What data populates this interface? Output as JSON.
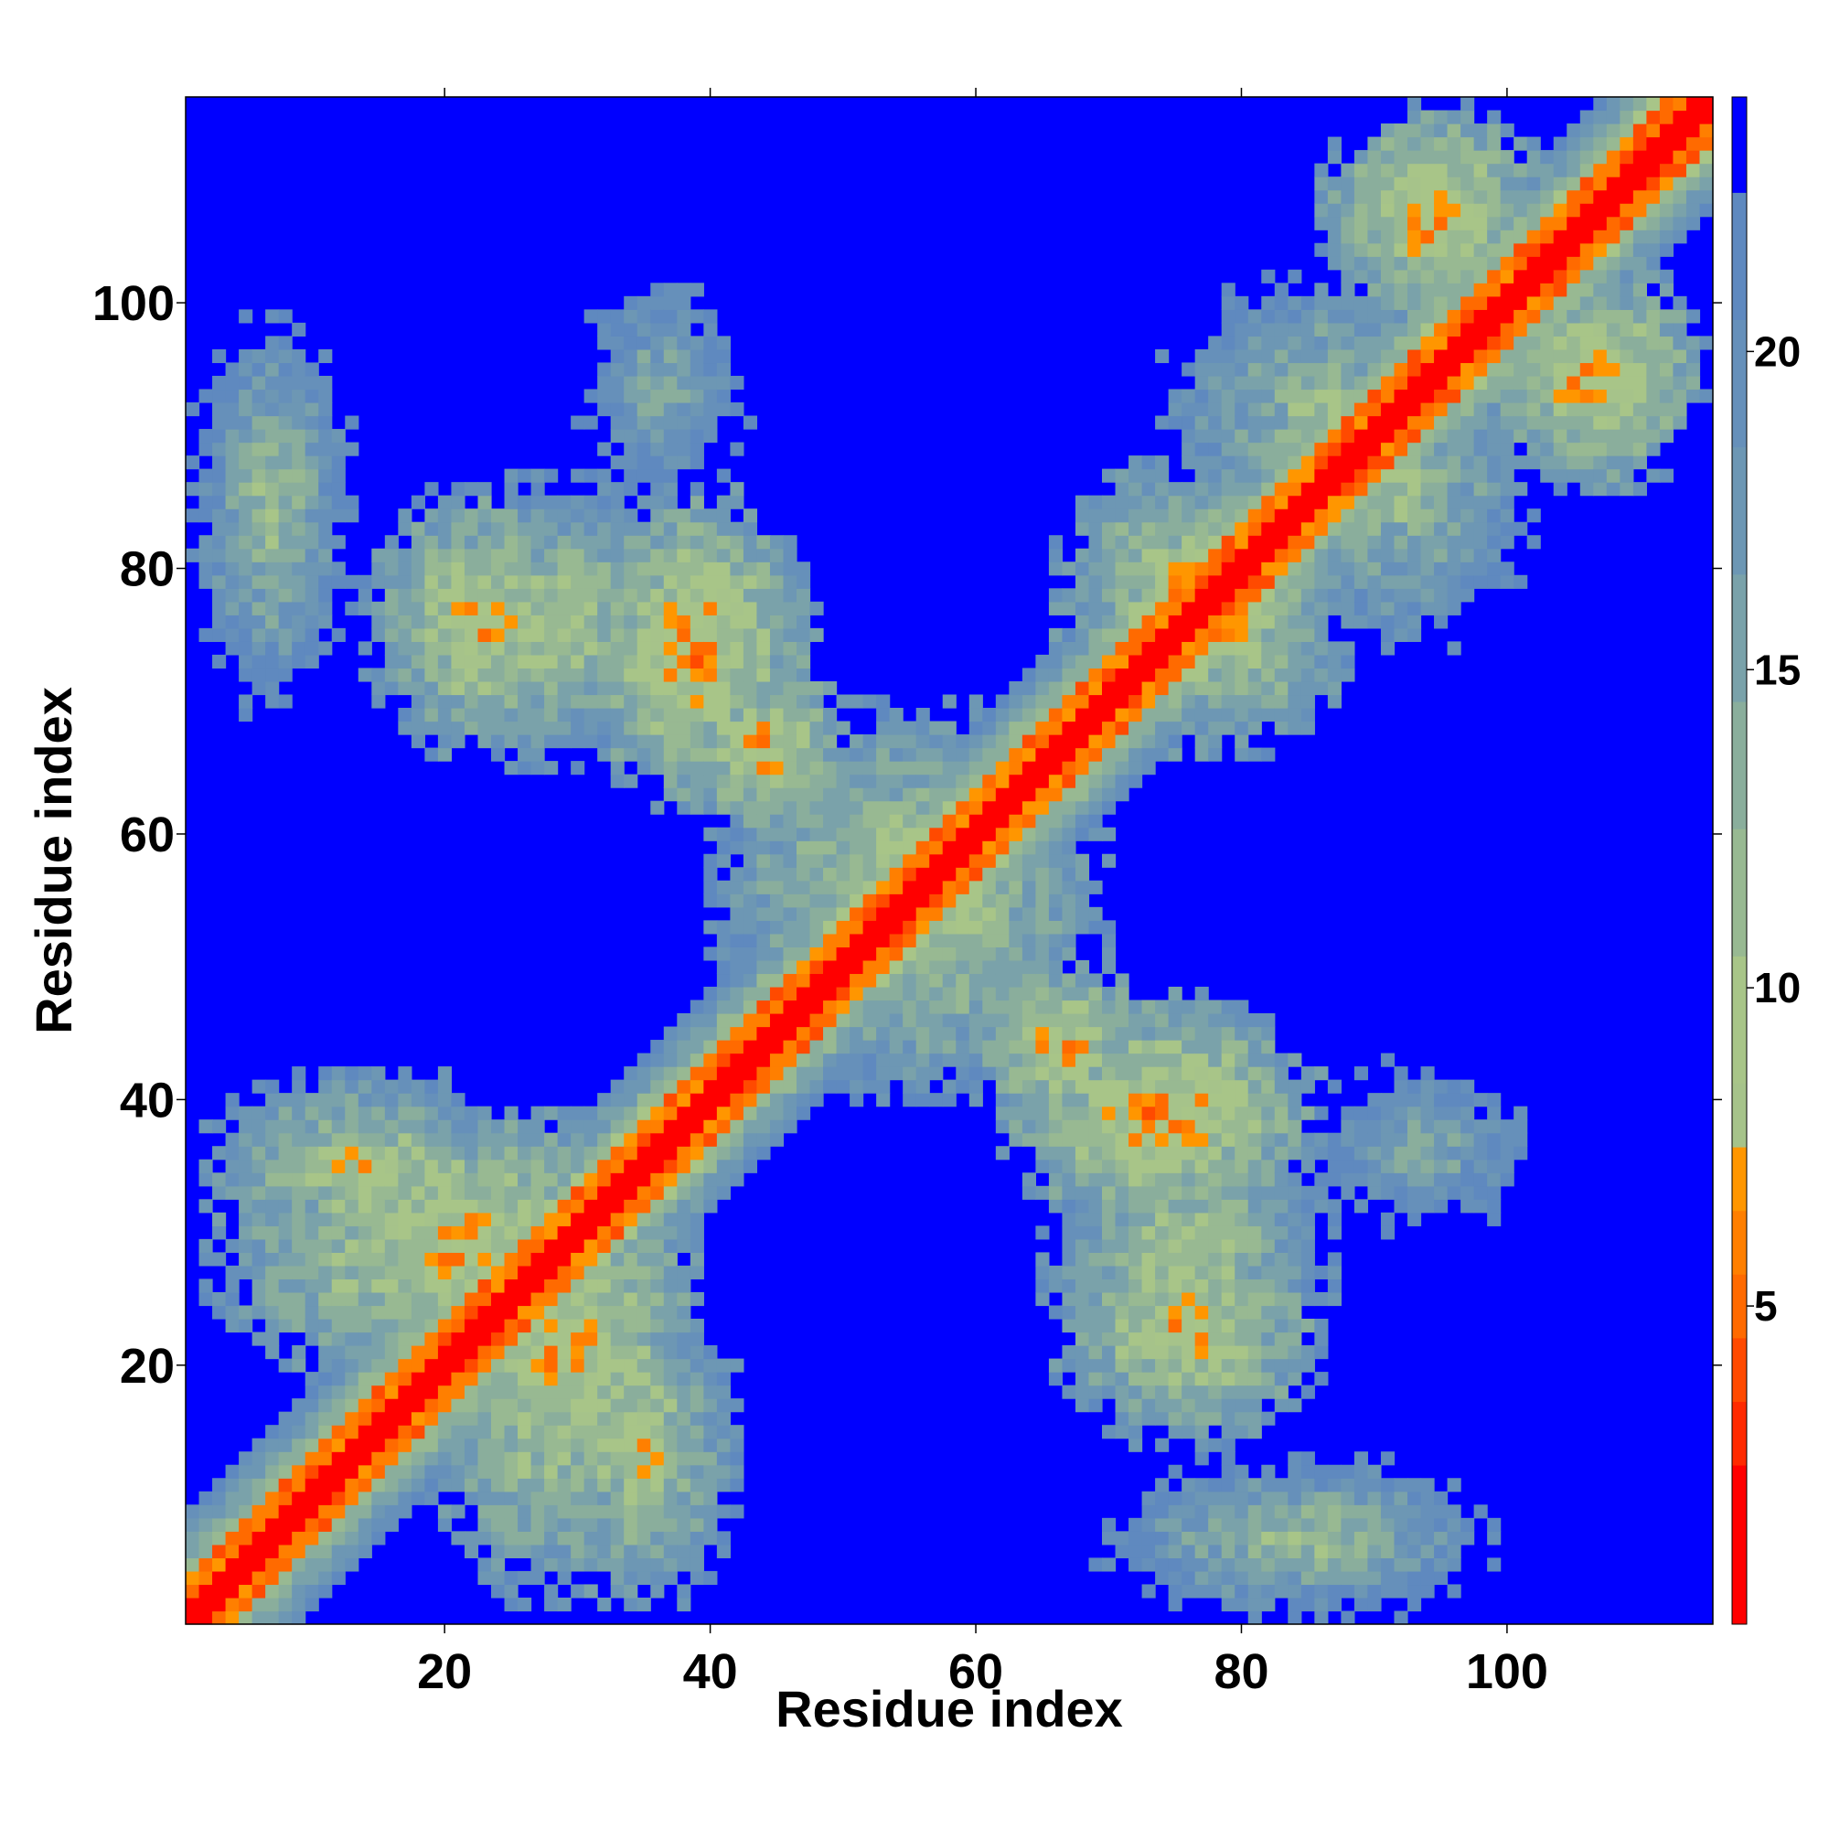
{
  "chart_data": {
    "type": "heatmap",
    "title": "",
    "xlabel": "Residue index",
    "ylabel": "Residue index",
    "xlim": [
      1,
      115
    ],
    "ylim": [
      1,
      115
    ],
    "n_residues": 115,
    "xticks": [
      20,
      40,
      60,
      80,
      100
    ],
    "yticks": [
      20,
      40,
      60,
      80,
      100
    ],
    "colorbar": {
      "range": [
        0,
        24
      ],
      "ticks": [
        5,
        10,
        15,
        20
      ],
      "levels": [
        {
          "max": 1.5,
          "color": "#ff0000"
        },
        {
          "max": 2.5,
          "color": "#ff0000"
        },
        {
          "max": 3.5,
          "color": "#ff2a00"
        },
        {
          "max": 4.5,
          "color": "#ff4a00"
        },
        {
          "max": 5.5,
          "color": "#ff6a00"
        },
        {
          "max": 6.5,
          "color": "#ff7f00"
        },
        {
          "max": 7.5,
          "color": "#ff9600"
        },
        {
          "max": 8.5,
          "color": "#a6c38a"
        },
        {
          "max": 10.5,
          "color": "#a8c588"
        },
        {
          "max": 12.5,
          "color": "#98b992"
        },
        {
          "max": 14.5,
          "color": "#8aae9c"
        },
        {
          "max": 16.5,
          "color": "#7aa2aa"
        },
        {
          "max": 18.5,
          "color": "#6d97b4"
        },
        {
          "max": 20.5,
          "color": "#6690ba"
        },
        {
          "max": 22.5,
          "color": "#5f89bf"
        },
        {
          "max": 24.0,
          "color": "#0000ff"
        }
      ]
    },
    "background_color": "#0000ff",
    "diagonal_band": {
      "inner_width": 1.5,
      "orange_width": 3,
      "band_width": 8
    },
    "regions": [
      {
        "x": [
          1,
          13
        ],
        "y": [
          73,
          99
        ],
        "min_distance": 11
      },
      {
        "x": [
          17,
          40
        ],
        "y": [
          65,
          87
        ],
        "min_distance": 9
      },
      {
        "x": [
          31,
          42
        ],
        "y": [
          85,
          103
        ],
        "min_distance": 13
      },
      {
        "x": [
          38,
          50
        ],
        "y": [
          60,
          73
        ],
        "min_distance": 6
      },
      {
        "x": [
          40,
          70
        ],
        "y": [
          43,
          68
        ],
        "min_distance": 8
      },
      {
        "x": [
          66,
          86
        ],
        "y": [
          68,
          88
        ],
        "min_distance": 7
      },
      {
        "x": [
          74,
          100
        ],
        "y": [
          82,
          102
        ],
        "min_distance": 10
      },
      {
        "x": [
          86,
          103
        ],
        "y": [
          98,
          115
        ],
        "min_distance": 6
      },
      {
        "x": [
          2,
          40
        ],
        "y": [
          18,
          40
        ],
        "min_distance": 7
      },
      {
        "x": [
          28,
          42
        ],
        "y": [
          2,
          26
        ],
        "min_distance": 8
      },
      {
        "x": [
          62,
          86
        ],
        "y": [
          30,
          48
        ],
        "min_distance": 6
      },
      {
        "x": [
          66,
          86
        ],
        "y": [
          14,
          32
        ],
        "min_distance": 7
      },
      {
        "x": [
          84,
          103
        ],
        "y": [
          30,
          43
        ],
        "min_distance": 13
      },
      {
        "x": [
          69,
          98
        ],
        "y": [
          1,
          13
        ],
        "min_distance": 11
      }
    ]
  }
}
